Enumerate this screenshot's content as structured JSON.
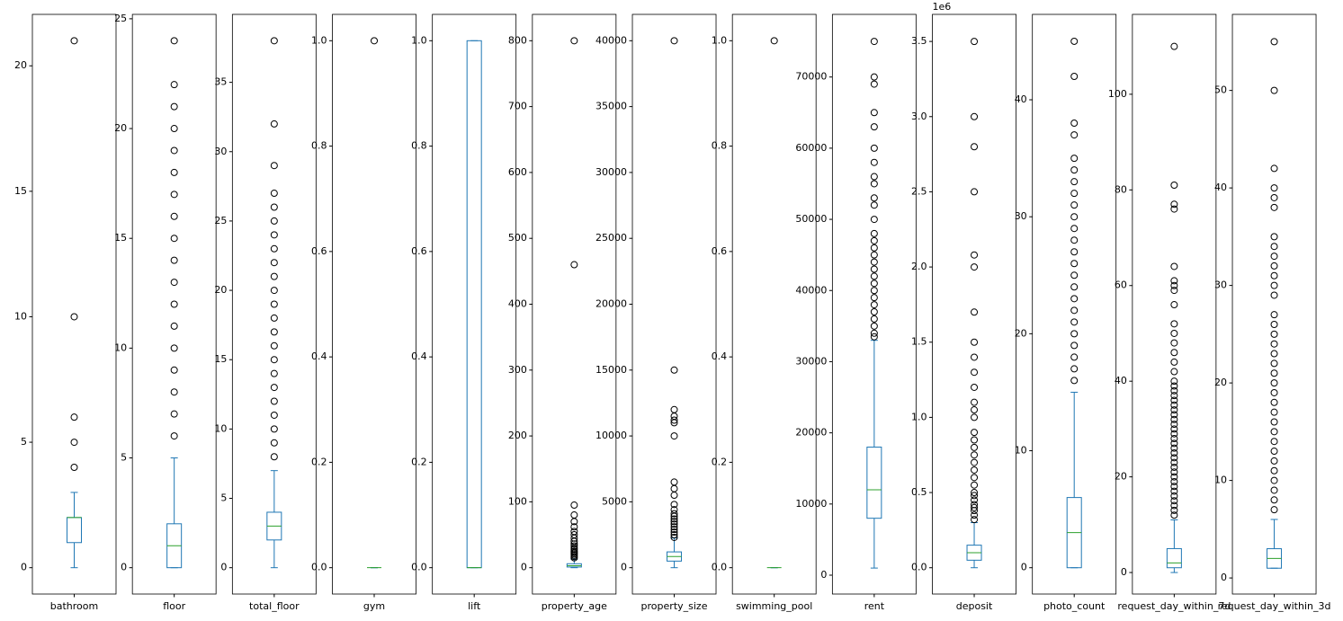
{
  "chart_data": [
    {
      "type": "box",
      "xlabel": "bathroom",
      "whisker_low": 0,
      "q1": 1,
      "median": 2,
      "q3": 2,
      "whisker_high": 3,
      "outliers": [
        4,
        5,
        6,
        10,
        21
      ],
      "ylim": [
        -1.05,
        22.05
      ],
      "yticks": [
        0,
        5,
        10,
        15,
        20
      ]
    },
    {
      "type": "box",
      "xlabel": "floor",
      "whisker_low": 0,
      "q1": 0,
      "median": 1,
      "q3": 2,
      "whisker_high": 5,
      "outliers": [
        6,
        7,
        8,
        9,
        10,
        11,
        12,
        13,
        14,
        15,
        16,
        17,
        18,
        19,
        20,
        21,
        22,
        24
      ],
      "ylim": [
        -1.2,
        25.2
      ],
      "yticks": [
        0,
        5,
        10,
        15,
        20,
        25
      ]
    },
    {
      "type": "box",
      "xlabel": "total_floor",
      "whisker_low": 0,
      "q1": 2,
      "median": 3,
      "q3": 4,
      "whisker_high": 7,
      "outliers": [
        8,
        9,
        10,
        11,
        12,
        13,
        14,
        15,
        16,
        17,
        18,
        19,
        20,
        21,
        22,
        23,
        24,
        25,
        26,
        27,
        29,
        32,
        38
      ],
      "ylim": [
        -1.9,
        39.9
      ],
      "yticks": [
        0,
        5,
        10,
        15,
        20,
        25,
        30,
        35
      ]
    },
    {
      "type": "box",
      "xlabel": "gym",
      "whisker_low": 0,
      "q1": 0,
      "median": 0,
      "q3": 0,
      "whisker_high": 0,
      "outliers": [
        1
      ],
      "ylim": [
        -0.05,
        1.05
      ],
      "yticks": [
        {
          "value": 0,
          "label": "0.0"
        },
        0.2,
        0.4,
        0.6,
        0.8,
        {
          "value": 1,
          "label": "1.0"
        }
      ]
    },
    {
      "type": "box",
      "xlabel": "lift",
      "whisker_low": 0,
      "q1": 0,
      "median": 0,
      "q3": 1,
      "whisker_high": 1,
      "outliers": [],
      "ylim": [
        -0.05,
        1.05
      ],
      "yticks": [
        {
          "value": 0,
          "label": "0.0"
        },
        0.2,
        0.4,
        0.6,
        0.8,
        {
          "value": 1,
          "label": "1.0"
        }
      ]
    },
    {
      "type": "box",
      "xlabel": "property_age",
      "whisker_low": 0,
      "q1": 1,
      "median": 3,
      "q3": 6,
      "whisker_high": 13,
      "outliers": [
        15,
        17,
        19,
        21,
        23,
        25,
        28,
        30,
        33,
        36,
        40,
        45,
        50,
        55,
        62,
        70,
        80,
        95,
        460,
        800
      ],
      "ylim": [
        -40,
        840
      ],
      "yticks": [
        0,
        100,
        200,
        300,
        400,
        500,
        600,
        700,
        800
      ]
    },
    {
      "type": "box",
      "xlabel": "property_size",
      "whisker_low": 0,
      "q1": 500,
      "median": 850,
      "q3": 1200,
      "whisker_high": 2250,
      "outliers": [
        2300,
        2500,
        2700,
        2900,
        3100,
        3300,
        3500,
        3700,
        3900,
        4100,
        4400,
        4800,
        5500,
        6000,
        6500,
        10000,
        11000,
        11200,
        11500,
        12000,
        15000,
        40000
      ],
      "ylim": [
        -2000,
        42000
      ],
      "yticks": [
        0,
        5000,
        10000,
        15000,
        20000,
        25000,
        30000,
        35000,
        40000
      ]
    },
    {
      "type": "box",
      "xlabel": "swimming_pool",
      "whisker_low": 0,
      "q1": 0,
      "median": 0,
      "q3": 0,
      "whisker_high": 0,
      "outliers": [
        1
      ],
      "ylim": [
        -0.05,
        1.05
      ],
      "yticks": [
        {
          "value": 0,
          "label": "0.0"
        },
        0.2,
        0.4,
        0.6,
        0.8,
        {
          "value": 1,
          "label": "1.0"
        }
      ]
    },
    {
      "type": "box",
      "xlabel": "rent",
      "whisker_low": 1000,
      "q1": 8000,
      "median": 12000,
      "q3": 18000,
      "whisker_high": 33000,
      "outliers": [
        33500,
        34000,
        35000,
        36000,
        37000,
        38000,
        39000,
        40000,
        41000,
        42000,
        43000,
        44000,
        45000,
        46000,
        47000,
        48000,
        50000,
        52000,
        53000,
        55000,
        56000,
        58000,
        60000,
        63000,
        65000,
        69000,
        70000,
        75000
      ],
      "ylim": [
        -2650,
        78800
      ],
      "yticks": [
        0,
        10000,
        20000,
        30000,
        40000,
        50000,
        60000,
        70000
      ]
    },
    {
      "type": "box",
      "xlabel": "deposit",
      "offset_text": "1e6",
      "whisker_low": 0,
      "q1": 0.05,
      "median": 0.1,
      "q3": 0.15,
      "whisker_high": 0.3,
      "outliers": [
        0.32,
        0.35,
        0.38,
        0.4,
        0.42,
        0.45,
        0.48,
        0.5,
        0.55,
        0.6,
        0.65,
        0.7,
        0.75,
        0.8,
        0.85,
        0.9,
        1.0,
        1.05,
        1.1,
        1.2,
        1.3,
        1.4,
        1.5,
        1.7,
        2.0,
        2.08,
        2.5,
        2.8,
        3.0,
        3.5
      ],
      "ylim": [
        -0.175,
        3.68
      ],
      "yticks": [
        {
          "value": 0,
          "label": "0.0"
        },
        0.5,
        {
          "value": 1,
          "label": "1.0"
        },
        1.5,
        {
          "value": 2,
          "label": "2.0"
        },
        2.5,
        {
          "value": 3,
          "label": "3.0"
        },
        3.5
      ]
    },
    {
      "type": "box",
      "xlabel": "photo_count",
      "whisker_low": 0,
      "q1": 0,
      "median": 3,
      "q3": 6,
      "whisker_high": 15,
      "outliers": [
        16,
        17,
        18,
        19,
        20,
        21,
        22,
        23,
        24,
        25,
        26,
        27,
        28,
        29,
        30,
        31,
        32,
        33,
        34,
        35,
        37,
        38,
        42,
        45
      ],
      "ylim": [
        -2.25,
        47.3
      ],
      "yticks": [
        0,
        10,
        20,
        30,
        40
      ]
    },
    {
      "type": "box",
      "xlabel": "request_day_within_7d",
      "whisker_low": 0,
      "q1": 1,
      "median": 2,
      "q3": 5,
      "whisker_high": 11,
      "outliers": [
        12,
        13,
        14,
        15,
        16,
        17,
        18,
        19,
        20,
        21,
        22,
        23,
        24,
        25,
        26,
        27,
        28,
        29,
        30,
        31,
        32,
        33,
        34,
        35,
        36,
        37,
        38,
        39,
        40,
        42,
        44,
        46,
        48,
        50,
        52,
        56,
        59,
        60,
        61,
        64,
        76,
        77,
        81,
        110
      ],
      "ylim": [
        -4.5,
        116.7
      ],
      "yticks": [
        0,
        20,
        40,
        60,
        80,
        100
      ]
    },
    {
      "type": "box",
      "xlabel": "request_day_within_3d",
      "whisker_low": 1,
      "q1": 1,
      "median": 2,
      "q3": 3,
      "whisker_high": 6,
      "outliers": [
        7,
        8,
        9,
        10,
        11,
        12,
        13,
        14,
        15,
        16,
        17,
        18,
        19,
        20,
        21,
        22,
        23,
        24,
        25,
        26,
        27,
        29,
        30,
        31,
        32,
        33,
        34,
        35,
        38,
        39,
        40,
        42,
        50,
        55
      ],
      "ylim": [
        -1.65,
        57.8
      ],
      "yticks": [
        0,
        10,
        20,
        30,
        40,
        50
      ]
    }
  ]
}
